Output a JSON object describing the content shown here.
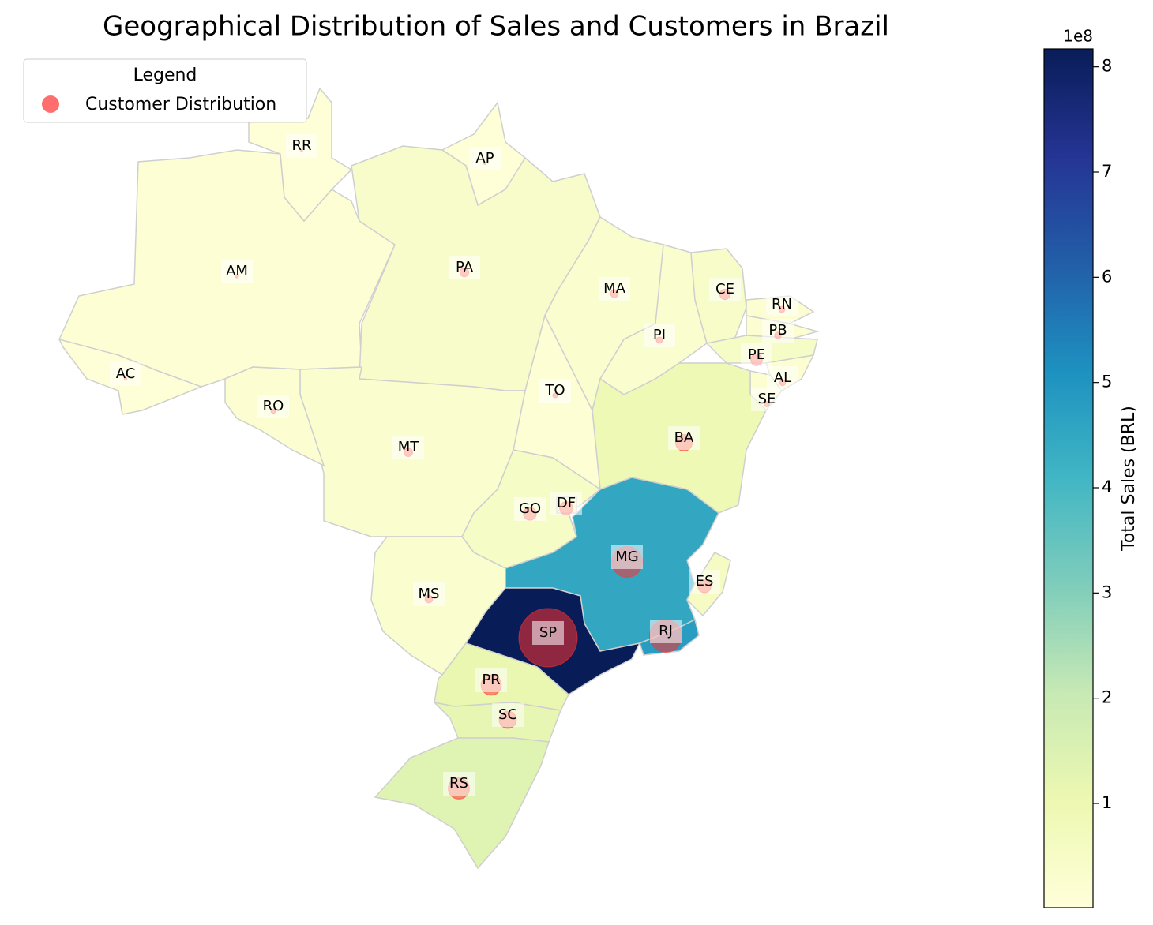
{
  "chart_data": {
    "type": "choropleth",
    "title": "Geographical Distribution of Sales and Customers in Brazil",
    "legend_title": "Legend",
    "legend_loc": "upper left",
    "categories": [
      "AM",
      "AC",
      "RR",
      "AP",
      "PA",
      "MA",
      "PI",
      "CE",
      "RN",
      "PB",
      "PE",
      "AL",
      "SE",
      "BA",
      "TO",
      "MT",
      "RO",
      "GO",
      "DF",
      "MS",
      "MG",
      "ES",
      "RJ",
      "SP",
      "PR",
      "SC",
      "RS"
    ],
    "color_values": [
      0.15,
      0.08,
      0.05,
      0.07,
      0.4,
      0.3,
      0.3,
      0.45,
      0.2,
      0.2,
      0.5,
      0.2,
      0.2,
      0.9,
      0.15,
      0.3,
      0.2,
      0.5,
      0.5,
      0.3,
      4.5,
      0.6,
      4.8,
      8.17,
      1.1,
      1.2,
      1.4
    ],
    "series": [
      {
        "name": "Customer Distribution",
        "color": "#ff3030",
        "values": [
          148,
          81,
          46,
          68,
          975,
          747,
          495,
          1336,
          485,
          536,
          1652,
          413,
          350,
          3380,
          280,
          907,
          253,
          2020,
          2140,
          715,
          11635,
          2033,
          12852,
          41746,
          5045,
          3637,
          5466
        ]
      }
    ],
    "colorbar": {
      "label": "Total Sales (BRL)",
      "offset_label": "1e8",
      "lim": [
        0.01,
        8.17
      ],
      "ticks": [
        1,
        2,
        3,
        4,
        5,
        6,
        7,
        8
      ],
      "colormap": [
        "#ffffd9",
        "#edf8b1",
        "#c7e9b4",
        "#7fcdbb",
        "#41b6c4",
        "#1d91c0",
        "#225ea8",
        "#253494",
        "#081d58"
      ]
    }
  }
}
